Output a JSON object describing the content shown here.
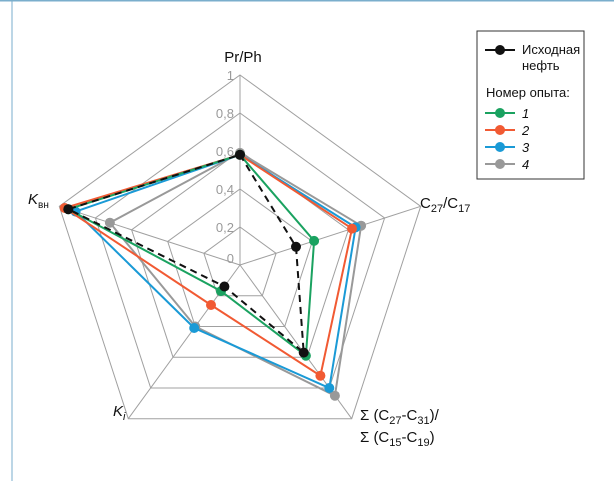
{
  "chart_data": {
    "type": "radar",
    "axes": [
      "Pr/Ph",
      "C27/C17",
      "Σ(C27-C31)/Σ(C15-C19)",
      "Ki",
      "Kвн"
    ],
    "axis_labels": {
      "pr_ph": "Pr/Ph",
      "c27_c17": {
        "pre1": "C",
        "sub1": "27",
        "mid": "/C",
        "sub2": "17"
      },
      "sum_ratio": {
        "line1": {
          "pre": "Σ (C",
          "sub1": "27",
          "mid": "-C",
          "sub2": "31",
          "post": ")/"
        },
        "line2": {
          "pre": "Σ (C",
          "sub1": "15",
          "mid": "-C",
          "sub2": "19",
          "post": ")"
        }
      },
      "ki": {
        "base": "K",
        "sub": "i"
      },
      "kvn": {
        "base": "K",
        "sub": "вн"
      }
    },
    "scale_ticks": [
      "0",
      "0,2",
      "0,4",
      "0,6",
      "0,8",
      "1"
    ],
    "range": [
      0,
      1
    ],
    "series": [
      {
        "name": "Исходная нефть",
        "color": "#111111",
        "dashed": true,
        "values": [
          0.58,
          0.31,
          0.57,
          0.14,
          0.95
        ]
      },
      {
        "name": "1",
        "color": "#1aa260",
        "dashed": false,
        "values": [
          0.58,
          0.41,
          0.59,
          0.17,
          0.95
        ]
      },
      {
        "name": "2",
        "color": "#f15a33",
        "dashed": false,
        "values": [
          0.58,
          0.62,
          0.72,
          0.26,
          0.97
        ]
      },
      {
        "name": "3",
        "color": "#1a9ad6",
        "dashed": false,
        "values": [
          0.58,
          0.64,
          0.8,
          0.41,
          0.91
        ]
      },
      {
        "name": "4",
        "color": "#999999",
        "dashed": false,
        "values": [
          0.59,
          0.67,
          0.85,
          0.4,
          0.72
        ]
      }
    ]
  },
  "legend": {
    "title_line1": "Исходная",
    "title_line2": "нефть",
    "subtitle": "Номер опыта:"
  },
  "frame_color": "#7aaecc"
}
